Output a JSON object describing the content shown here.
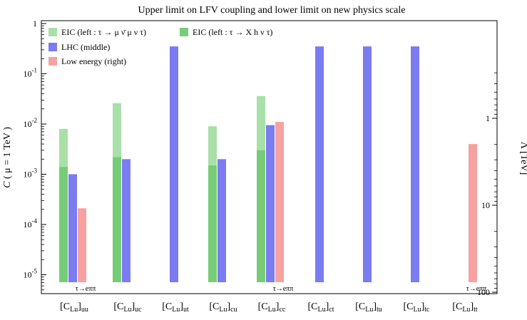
{
  "chart_data": {
    "type": "bar",
    "title": "Upper limit on LFV coupling and lower limit on new physics scale",
    "ylabel_left": "C ( μ = 1 TeV )",
    "ylabel_right": "Λ [TeV]",
    "yscale": "log",
    "ylim": [
      5e-06,
      1
    ],
    "left_ticks": [
      "10⁻⁵",
      "10⁻⁴",
      "10⁻³",
      "10⁻²",
      "10⁻¹",
      "1"
    ],
    "right_ticks": [
      "1",
      "10",
      "100"
    ],
    "categories": [
      "[C_Lu]_uu",
      "[C_Lu]_uc",
      "[C_Lu]_ut",
      "[C_Lu]_cu",
      "[C_Lu]_cc",
      "[C_Lu]_ct",
      "[C_Lu]_tu",
      "[C_Lu]_tc",
      "[C_Lu]_tt"
    ],
    "category_labels": [
      {
        "main": "[C",
        "sub1": "Lu",
        "close": "]",
        "sub2": "uu"
      },
      {
        "main": "[C",
        "sub1": "Lu",
        "close": "]",
        "sub2": "uc"
      },
      {
        "main": "[C",
        "sub1": "Lu",
        "close": "]",
        "sub2": "ut"
      },
      {
        "main": "[C",
        "sub1": "Lu",
        "close": "]",
        "sub2": "cu"
      },
      {
        "main": "[C",
        "sub1": "Lu",
        "close": "]",
        "sub2": "cc"
      },
      {
        "main": "[C",
        "sub1": "Lu",
        "close": "]",
        "sub2": "ct"
      },
      {
        "main": "[C",
        "sub1": "Lu",
        "close": "]",
        "sub2": "tu"
      },
      {
        "main": "[C",
        "sub1": "Lu",
        "close": "]",
        "sub2": "tc"
      },
      {
        "main": "[C",
        "sub1": "Lu",
        "close": "]",
        "sub2": "tt"
      }
    ],
    "series": [
      {
        "name": "EIC (left : τ → μ ν̄_μ ν_τ)",
        "legend_text": "EIC (left : τ → μ ν̄ μ ν τ)",
        "color": "#a8e0a8",
        "position": "left",
        "values": [
          0.008,
          0.026,
          null,
          0.009,
          0.036,
          null,
          null,
          null,
          null
        ]
      },
      {
        "name": "EIC (left : τ → X_h ν_τ)",
        "legend_text": "EIC (left : τ → X h ν τ)",
        "color": "#77cc77",
        "position": "left",
        "values": [
          0.0014,
          0.0022,
          null,
          0.0015,
          0.003,
          null,
          null,
          null,
          null
        ]
      },
      {
        "name": "LHC (middle)",
        "legend_text": "LHC (middle)",
        "color": "#7b7bf2",
        "position": "middle",
        "values": [
          0.001,
          0.002,
          0.35,
          0.002,
          0.0095,
          0.35,
          0.35,
          0.35,
          null
        ]
      },
      {
        "name": "Low energy (right)",
        "legend_text": "Low energy (right)",
        "color": "#f7a1a1",
        "position": "right",
        "values": [
          0.00021,
          null,
          null,
          null,
          0.011,
          null,
          null,
          null,
          0.004
        ]
      }
    ],
    "annotations": [
      {
        "text": "τ→eππ",
        "category": 0
      },
      {
        "text": "τ→eππ",
        "category": 4
      },
      {
        "text": "τ→eππ",
        "category": 8
      }
    ],
    "legend_placement": "top-left",
    "grid": false
  }
}
